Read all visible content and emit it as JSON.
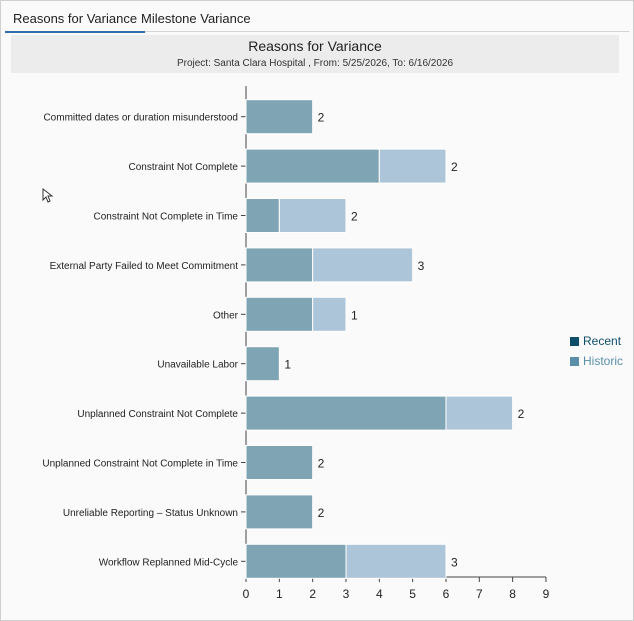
{
  "tabs": [
    {
      "label": "Reasons for Variance",
      "active": true
    },
    {
      "label": "Milestone Variance",
      "active": false
    }
  ],
  "header": {
    "title": "Reasons for Variance",
    "subtitle": "Project: Santa Clara Hospital , From: 5/25/2026, To: 6/16/2026"
  },
  "legend": [
    {
      "label": "Recent",
      "color": "#0f4e6b"
    },
    {
      "label": "Historic",
      "color": "#5b8fa8"
    }
  ],
  "chart_data": {
    "type": "bar",
    "orientation": "horizontal",
    "stacked": true,
    "categories": [
      "Committed dates or duration misunderstood",
      "Constraint Not Complete",
      "Constraint Not Complete in Time",
      "External Party Failed to Meet Commitment",
      "Other",
      "Unavailable Labor",
      "Unplanned Constraint Not Complete",
      "Unplanned Constraint Not Complete in Time",
      "Unreliable Reporting – Status Unknown",
      "Workflow Replanned Mid-Cycle"
    ],
    "series": [
      {
        "values": [
          2,
          4,
          1,
          2,
          2,
          1,
          6,
          2,
          2,
          3
        ],
        "color": "#7fa4b4"
      },
      {
        "values": [
          0,
          2,
          2,
          3,
          1,
          0,
          2,
          0,
          0,
          3
        ],
        "color": "#adc5d8"
      }
    ],
    "xlim": [
      0,
      9
    ],
    "xticks": [
      0,
      1,
      2,
      3,
      4,
      5,
      6,
      7,
      8,
      9
    ],
    "grid": false
  }
}
